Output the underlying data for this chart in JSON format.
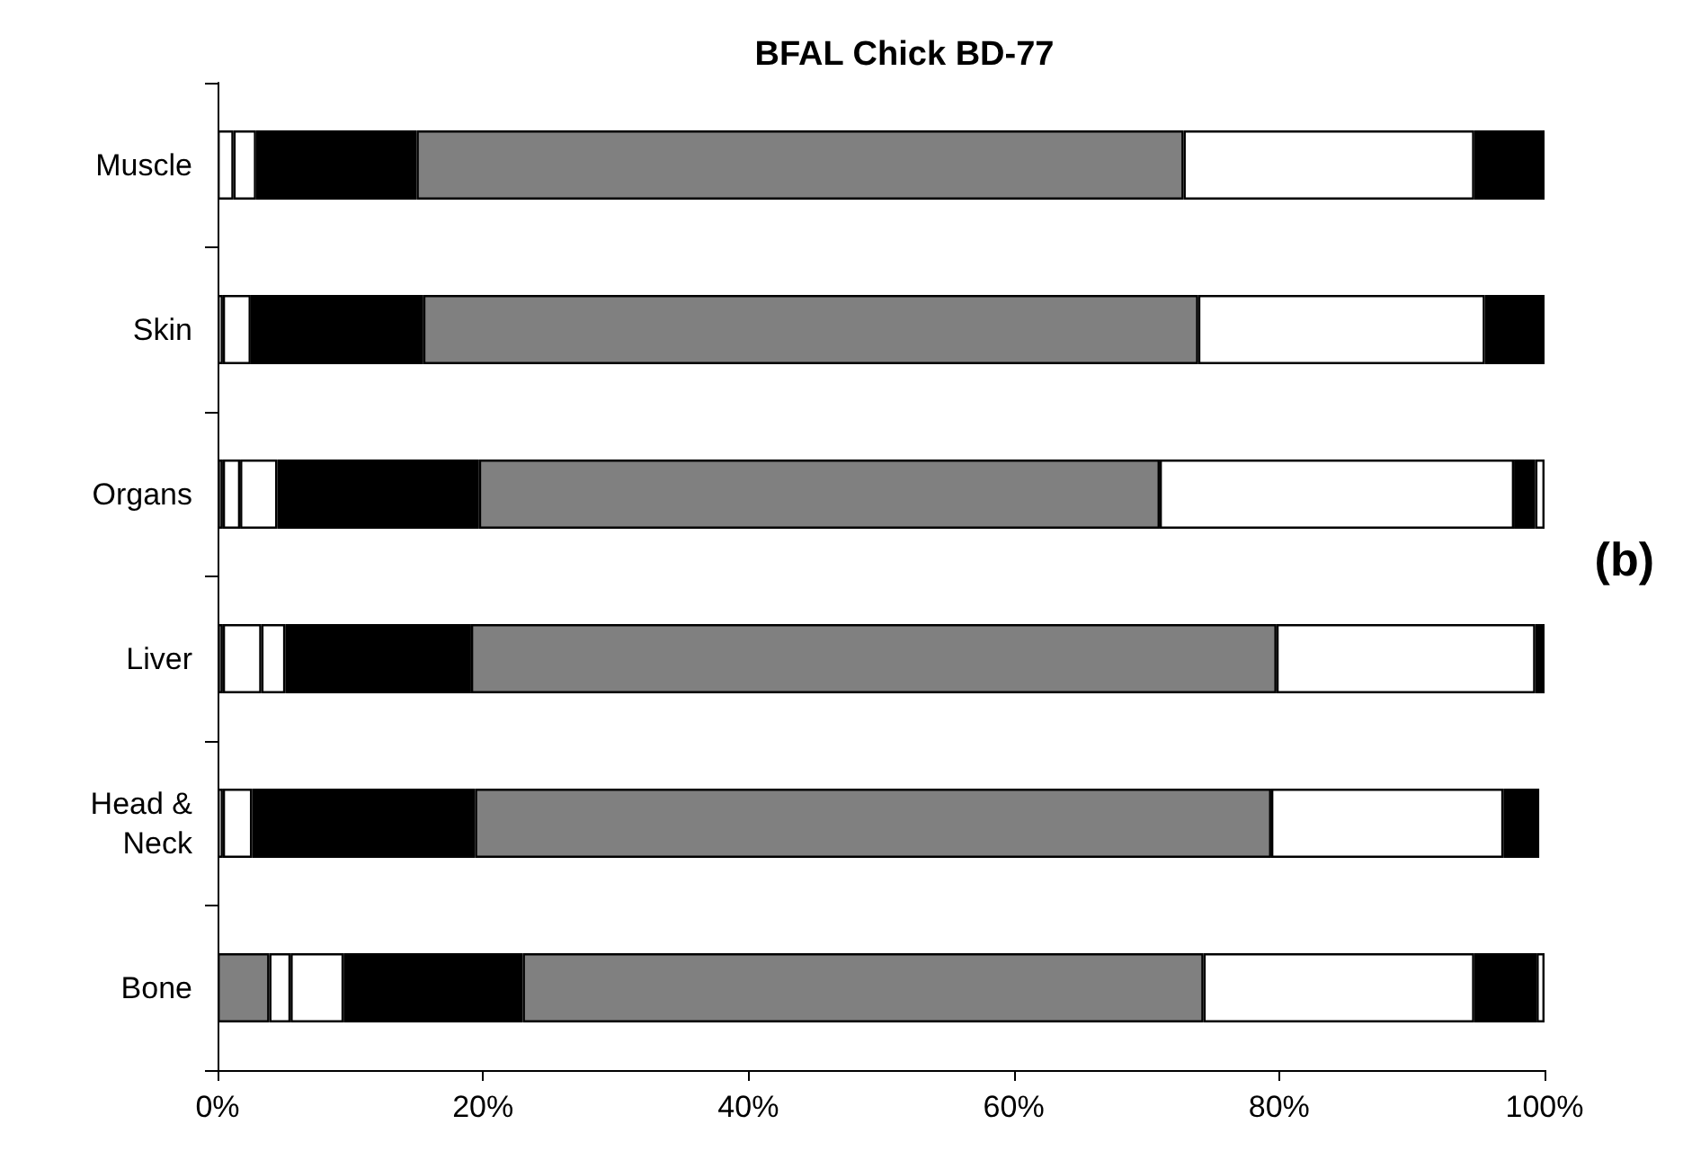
{
  "chart_data": {
    "type": "bar",
    "orientation": "horizontal",
    "stacked": true,
    "title": "BFAL Chick BD-77",
    "annotations": [
      "(b)"
    ],
    "categories": [
      "Muscle",
      "Skin",
      "Organs",
      "Liver",
      "Head & Neck",
      "Bone"
    ],
    "series": [
      {
        "color": "#808080",
        "values": [
          null,
          null,
          0.4,
          0.4,
          null,
          3.9
        ]
      },
      {
        "color": "#ffffff",
        "values": [
          1.2,
          0.4,
          1.3,
          2.9,
          0.4,
          1.6
        ]
      },
      {
        "color": "#ffffff",
        "values": [
          1.7,
          2.1,
          2.8,
          1.8,
          2.2,
          4.0
        ]
      },
      {
        "color": "#000000",
        "values": [
          12.1,
          13.0,
          15.2,
          14.0,
          16.8,
          13.5
        ]
      },
      {
        "color": "#808080",
        "values": [
          57.8,
          58.4,
          51.3,
          60.7,
          60.0,
          51.3
        ]
      },
      {
        "color": "#ffffff",
        "values": [
          21.9,
          21.6,
          26.7,
          19.5,
          17.5,
          20.4
        ]
      },
      {
        "color": "#000000",
        "values": [
          5.3,
          4.5,
          1.6,
          0.7,
          2.7,
          4.7
        ]
      },
      {
        "color": "#ffffff",
        "values": [
          null,
          null,
          0.7,
          null,
          null,
          0.6
        ]
      }
    ],
    "xlim": [
      0,
      100
    ],
    "xticks": [
      {
        "value": 0,
        "label": "0%"
      },
      {
        "value": 20,
        "label": "20%"
      },
      {
        "value": 40,
        "label": "40%"
      },
      {
        "value": 60,
        "label": "60%"
      },
      {
        "value": 80,
        "label": "80%"
      },
      {
        "value": 100,
        "label": "100%"
      }
    ],
    "grid": false
  }
}
